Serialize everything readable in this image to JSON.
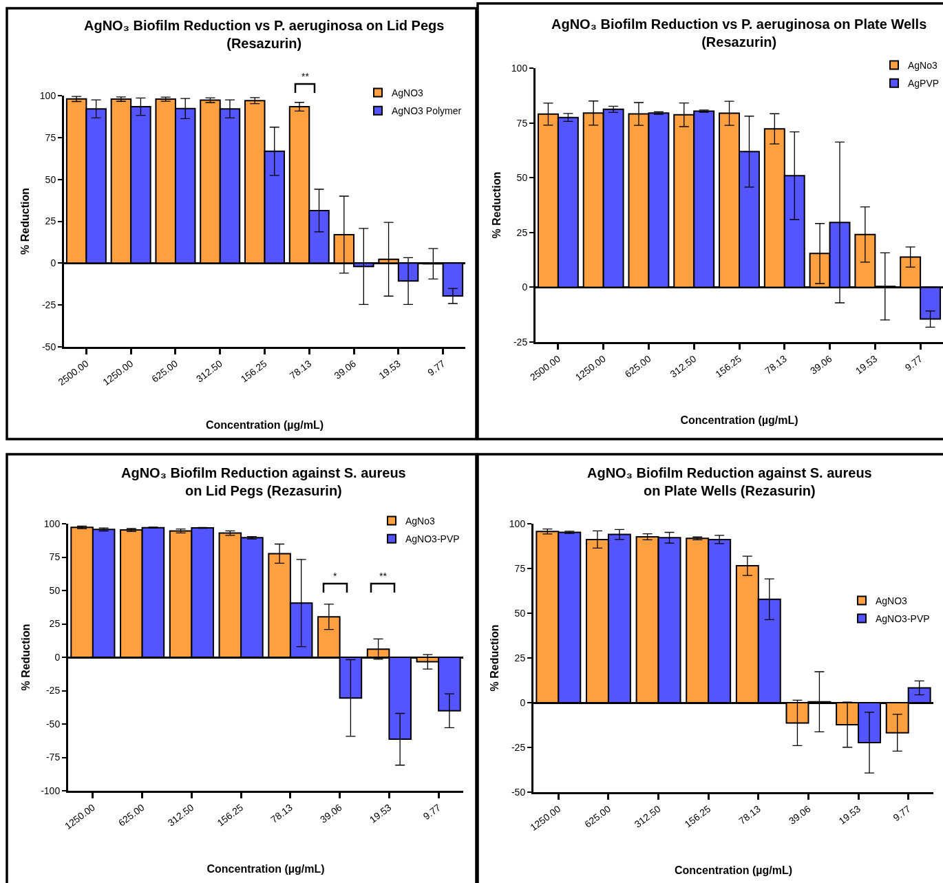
{
  "chart_data": [
    {
      "type": "bar",
      "title": "AgNO₃ Biofilm Reduction vs P. aeruginosa on Lid Pegs\n(Resazurin)",
      "xlabel": "Concentration (µg/mL)",
      "ylabel": "% Reduction",
      "categories": [
        "2500.00",
        "1250.00",
        "625.00",
        "312.50",
        "156.25",
        "78.13",
        "39.06",
        "19.53",
        "9.77"
      ],
      "series": [
        {
          "name": "AgNO3",
          "color": "#ffa040",
          "values": [
            98.0,
            97.9,
            97.9,
            97.3,
            97.0,
            93.4,
            17.0,
            2.3,
            -0.4
          ],
          "errors": [
            1.5,
            1.3,
            1.2,
            1.4,
            1.8,
            2.6,
            23.0,
            22.0,
            9.1
          ]
        },
        {
          "name": "AgNO3 Polymer",
          "color": "#5555ff",
          "values": [
            92.1,
            93.4,
            92.3,
            92.1,
            66.8,
            31.4,
            -2.0,
            -10.7,
            -19.6
          ],
          "errors": [
            5.4,
            5.2,
            6.0,
            5.4,
            14.4,
            12.7,
            22.7,
            14.0,
            4.5
          ]
        }
      ],
      "ylim": [
        -50,
        100
      ],
      "yticks": [
        -50,
        -25,
        0,
        25,
        50,
        75,
        100
      ],
      "legend": "top right",
      "annotations": [
        "**"
      ]
    },
    {
      "type": "bar",
      "title": "AgNO₃ Biofilm Reduction vs P. aeruginosa on Plate Wells\n(Resazurin)",
      "xlabel": "Concentration (µg/mL)",
      "ylabel": "% Reduction",
      "categories": [
        "2500.00",
        "1250.00",
        "625.00",
        "312.50",
        "156.25",
        "78.13",
        "39.06",
        "19.53",
        "9.77"
      ],
      "series": [
        {
          "name": "AgNo3",
          "color": "#ffa040",
          "values": [
            79.0,
            79.5,
            79.1,
            78.7,
            79.4,
            72.3,
            15.4,
            24.1,
            13.8
          ],
          "errors": [
            5.0,
            5.5,
            5.2,
            5.4,
            5.5,
            6.9,
            13.7,
            12.6,
            4.6
          ]
        },
        {
          "name": "AgPVP",
          "color": "#5555ff",
          "values": [
            77.5,
            81.2,
            79.5,
            80.4,
            61.9,
            50.9,
            29.6,
            0.4,
            -14.5
          ],
          "errors": [
            1.8,
            1.4,
            0.6,
            0.5,
            16.2,
            20.0,
            36.7,
            15.3,
            3.7
          ]
        }
      ],
      "ylim": [
        -25,
        100
      ],
      "yticks": [
        -25,
        0,
        25,
        50,
        75,
        100
      ],
      "legend": "top right"
    },
    {
      "type": "bar",
      "title": "AgNO₃ Biofilm Reduction against S. aureus\non Lid Pegs (Rezasurin)",
      "xlabel": "Concentration (µg/mL)",
      "ylabel": "% Reduction",
      "categories": [
        "1250.00",
        "625.00",
        "312.50",
        "156.25",
        "78.13",
        "39.06",
        "19.53",
        "9.77"
      ],
      "series": [
        {
          "name": "AgNo3",
          "color": "#ffa040",
          "values": [
            97.3,
            95.3,
            94.6,
            93.0,
            77.6,
            30.3,
            6.1,
            -3.4
          ],
          "errors": [
            0.9,
            1.1,
            1.5,
            1.7,
            7.2,
            9.5,
            7.6,
            5.4
          ]
        },
        {
          "name": "AgNO3-PVP",
          "color": "#5555ff",
          "values": [
            95.7,
            97.1,
            96.9,
            89.5,
            40.6,
            -30.5,
            -61.4,
            -40.1
          ],
          "errors": [
            1.1,
            0.4,
            0.3,
            0.9,
            32.7,
            28.7,
            19.4,
            12.7
          ]
        }
      ],
      "ylim": [
        -100,
        100
      ],
      "yticks": [
        -100,
        -75,
        -50,
        -25,
        0,
        25,
        50,
        75,
        100
      ],
      "legend": "top right",
      "annotations": [
        "*",
        "**"
      ]
    },
    {
      "type": "bar",
      "title": "AgNO₃ Biofilm Reduction against S. aureus\non Plate Wells (Rezasurin)",
      "xlabel": "Concentration (µg/mL)",
      "ylabel": "% Reduction",
      "categories": [
        "1250.00",
        "625.00",
        "312.50",
        "156.25",
        "78.13",
        "39.06",
        "19.53",
        "9.77"
      ],
      "series": [
        {
          "name": "AgNO3",
          "color": "#ffa040",
          "values": [
            95.7,
            91.2,
            92.7,
            91.8,
            76.5,
            -11.3,
            -12.3,
            -16.8
          ],
          "errors": [
            1.4,
            4.8,
            1.7,
            0.8,
            5.4,
            12.7,
            12.6,
            10.3
          ]
        },
        {
          "name": "AgNO3-PVP",
          "color": "#5555ff",
          "values": [
            95.2,
            94.0,
            92.2,
            91.2,
            57.8,
            0.5,
            -22.3,
            8.3
          ],
          "errors": [
            0.6,
            2.8,
            3.0,
            2.3,
            11.4,
            16.8,
            17.0,
            3.9
          ]
        }
      ],
      "ylim": [
        -50,
        100
      ],
      "yticks": [
        -50,
        -25,
        0,
        25,
        50,
        75,
        100
      ],
      "legend": "right"
    }
  ]
}
